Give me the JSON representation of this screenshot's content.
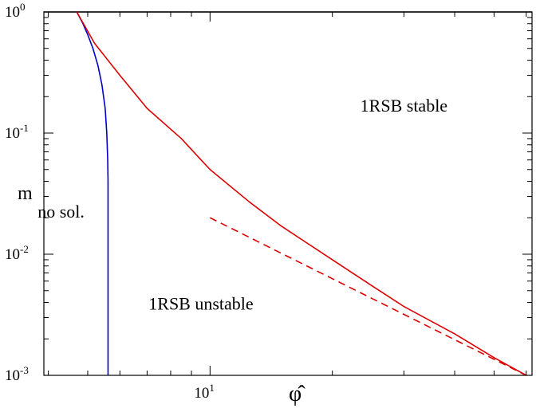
{
  "chart_data": {
    "type": "line",
    "xlabel": "φ̂",
    "ylabel": "m",
    "x_scale": "log",
    "y_scale": "log",
    "xlim": [
      3.9,
      62
    ],
    "ylim": [
      0.001,
      1
    ],
    "grid": false,
    "x_ticks": [
      {
        "value": 10,
        "base": "10",
        "exp": "1"
      }
    ],
    "y_ticks": [
      {
        "value": 1,
        "base": "10",
        "exp": "0"
      },
      {
        "value": 0.1,
        "base": "10",
        "exp": "-1"
      },
      {
        "value": 0.01,
        "base": "10",
        "exp": "-2"
      },
      {
        "value": 0.001,
        "base": "10",
        "exp": "-3"
      }
    ],
    "series": [
      {
        "color": "#0000cc",
        "style": "solid",
        "points": [
          [
            4.7,
            1.0
          ],
          [
            4.85,
            0.82
          ],
          [
            5.0,
            0.65
          ],
          [
            5.15,
            0.5
          ],
          [
            5.3,
            0.36
          ],
          [
            5.42,
            0.25
          ],
          [
            5.52,
            0.16
          ],
          [
            5.57,
            0.1
          ],
          [
            5.6,
            0.06
          ],
          [
            5.61,
            0.04
          ],
          [
            5.61,
            0.02
          ],
          [
            5.61,
            0.008
          ],
          [
            5.61,
            0.003
          ],
          [
            5.61,
            0.001
          ]
        ]
      },
      {
        "color": "#dd0000",
        "style": "solid",
        "points": [
          [
            4.7,
            1.0
          ],
          [
            5.2,
            0.55
          ],
          [
            6.0,
            0.3
          ],
          [
            7.0,
            0.16
          ],
          [
            8.5,
            0.09
          ],
          [
            10.0,
            0.05
          ],
          [
            12.5,
            0.027
          ],
          [
            15.0,
            0.017
          ],
          [
            20.0,
            0.009
          ],
          [
            25.0,
            0.0055
          ],
          [
            30.0,
            0.0037
          ],
          [
            40.0,
            0.0022
          ],
          [
            50.0,
            0.0014
          ],
          [
            60.0,
            0.001
          ]
        ]
      },
      {
        "color": "#dd0000",
        "style": "dashed",
        "points": [
          [
            10.0,
            0.02
          ],
          [
            60.0,
            0.001
          ]
        ]
      }
    ],
    "reference_lines": [
      {
        "axis": "y",
        "value": 1,
        "color": "#000000"
      }
    ],
    "annotations": [
      {
        "text": "1RSB stable",
        "x": 30,
        "y": 0.15
      },
      {
        "text": "no sol.",
        "x": 4.3,
        "y": 0.02
      },
      {
        "text": "1RSB unstable",
        "x": 9.5,
        "y": 0.0035
      }
    ]
  }
}
